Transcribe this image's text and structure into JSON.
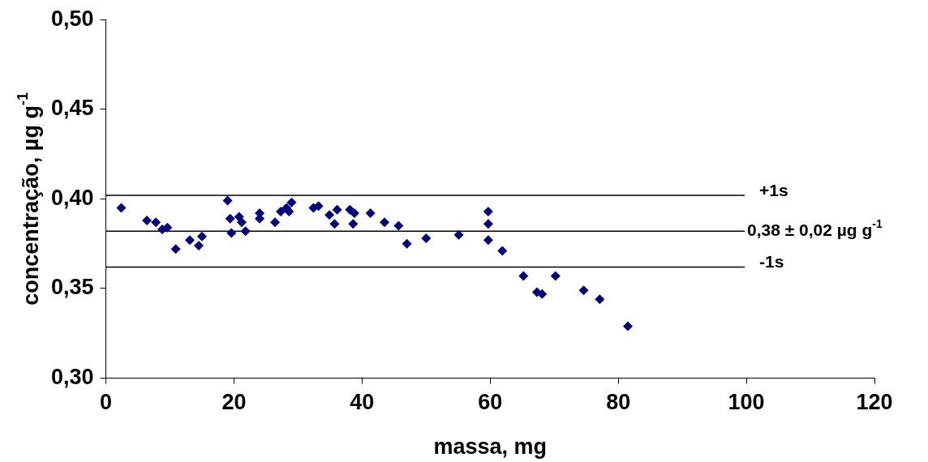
{
  "chart_data": {
    "type": "scatter",
    "xlabel": "massa, mg",
    "ylabel": "concentração, µg g$^{-1}$",
    "x": [
      2.4,
      6.4,
      7.8,
      8.8,
      9.6,
      10.9,
      13.1,
      14.5,
      15.0,
      19.0,
      19.4,
      19.6,
      20.8,
      21.2,
      21.8,
      24.0,
      24.0,
      26.4,
      27.3,
      28.2,
      28.6,
      29.0,
      32.4,
      33.2,
      34.9,
      35.7,
      36.1,
      38.1,
      38.8,
      38.6,
      41.3,
      43.5,
      45.7,
      47.0,
      50.0,
      55.1,
      59.7,
      59.7,
      59.7,
      61.9,
      65.2,
      67.3,
      68.1,
      70.2,
      74.6,
      77.1,
      81.5
    ],
    "series": [
      {
        "color": "#000080",
        "values": [
          0.395,
          0.388,
          0.387,
          0.383,
          0.384,
          0.372,
          0.377,
          0.374,
          0.379,
          0.399,
          0.389,
          0.381,
          0.39,
          0.387,
          0.382,
          0.392,
          0.389,
          0.387,
          0.393,
          0.395,
          0.393,
          0.398,
          0.395,
          0.396,
          0.391,
          0.386,
          0.394,
          0.394,
          0.392,
          0.386,
          0.392,
          0.387,
          0.385,
          0.375,
          0.378,
          0.38,
          0.393,
          0.386,
          0.377,
          0.371,
          0.357,
          0.348,
          0.347,
          0.357,
          0.349,
          0.344,
          0.329
        ]
      }
    ],
    "marker": "diamond",
    "xlim": [
      0,
      120
    ],
    "xticks": [
      0,
      20,
      40,
      60,
      80,
      100,
      120
    ],
    "ylim": [
      0.3,
      0.5
    ],
    "yticks": [
      {
        "value": 0.3,
        "label": "0,30"
      },
      {
        "value": 0.35,
        "label": "0,35"
      },
      {
        "value": 0.4,
        "label": "0,40"
      },
      {
        "value": 0.45,
        "label": "0,45"
      },
      {
        "value": 0.5,
        "label": "0,50"
      }
    ],
    "ref_lines": [
      {
        "axis": "y",
        "value": 0.402,
        "label": "+1s"
      },
      {
        "axis": "y",
        "value": 0.382,
        "label": "0,38 ± 0,02 µg g$^{-1}$"
      },
      {
        "axis": "y",
        "value": 0.362,
        "label": "-1s"
      }
    ],
    "grid": false,
    "legend": false
  }
}
